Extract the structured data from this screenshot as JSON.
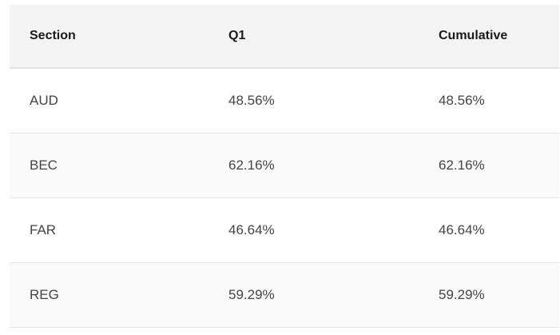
{
  "table": {
    "headers": [
      "Section",
      "Q1",
      "Cumulative"
    ],
    "rows": [
      [
        "AUD",
        "48.56%",
        "48.56%"
      ],
      [
        "BEC",
        "62.16%",
        "62.16%"
      ],
      [
        "FAR",
        "46.64%",
        "46.64%"
      ],
      [
        "REG",
        "59.29%",
        "59.29%"
      ]
    ]
  }
}
